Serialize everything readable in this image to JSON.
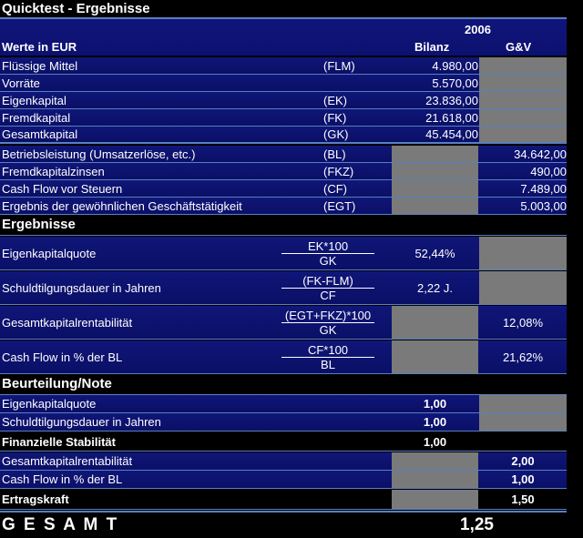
{
  "title": "Quicktest - Ergebnisse",
  "header": {
    "year": "2006",
    "werte": "Werte in EUR",
    "col_bilanz": "Bilanz",
    "col_guv": "G&V"
  },
  "balance_rows": [
    {
      "label": "Flüssige Mittel",
      "abbr": "(FLM)",
      "bilanz": "4.980,00",
      "guv": ""
    },
    {
      "label": "Vorräte",
      "abbr": "",
      "bilanz": "5.570,00",
      "guv": ""
    },
    {
      "label": "Eigenkapital",
      "abbr": "(EK)",
      "bilanz": "23.836,00",
      "guv": ""
    },
    {
      "label": "Fremdkapital",
      "abbr": "(FK)",
      "bilanz": "21.618,00",
      "guv": ""
    },
    {
      "label": "Gesamtkapital",
      "abbr": "(GK)",
      "bilanz": "45.454,00",
      "guv": ""
    }
  ],
  "guv_rows": [
    {
      "label": "Betriebsleistung (Umsatzerlöse, etc.)",
      "abbr": "(BL)",
      "guv": "34.642,00"
    },
    {
      "label": "Fremdkapitalzinsen",
      "abbr": "(FKZ)",
      "guv": "490,00"
    },
    {
      "label": "Cash Flow vor Steuern",
      "abbr": "(CF)",
      "guv": "7.489,00"
    },
    {
      "label": "Ergebnis der gewöhnlichen Geschäftstätigkeit",
      "abbr": "(EGT)",
      "guv": "5.003,00"
    }
  ],
  "ergebnisse": {
    "heading": "Ergebnisse",
    "rows": [
      {
        "label": "Eigenkapitalquote",
        "num": "EK*100",
        "den": "GK",
        "bilanz": "52,44%",
        "guv": ""
      },
      {
        "label": "Schuldtilgungsdauer in Jahren",
        "num": "(FK-FLM)",
        "den": "CF",
        "bilanz": "2,22 J.",
        "guv": ""
      },
      {
        "label": "Gesamtkapitalrentabilität",
        "num": "(EGT+FKZ)*100",
        "den": "GK",
        "bilanz": "",
        "guv": "12,08%"
      },
      {
        "label": "Cash Flow in % der BL",
        "num": "CF*100",
        "den": "BL",
        "bilanz": "",
        "guv": "21,62%"
      }
    ]
  },
  "beurteilung": {
    "heading": "Beurteilung/Note",
    "stab_rows": [
      {
        "label": "Eigenkapitalquote",
        "val": "1,00"
      },
      {
        "label": "Schuldtilgungsdauer in Jahren",
        "val": "1,00"
      }
    ],
    "stab_total": {
      "label": "Finanzielle Stabilität",
      "val": "1,00"
    },
    "ertrag_rows": [
      {
        "label": "Gesamtkapitalrentabilität",
        "val": "2,00"
      },
      {
        "label": "Cash Flow in % der BL",
        "val": "1,00"
      }
    ],
    "ertrag_total": {
      "label": "Ertragskraft",
      "val": "1,50"
    }
  },
  "gesamt": {
    "label": "G E S A M T",
    "val": "1,25"
  }
}
